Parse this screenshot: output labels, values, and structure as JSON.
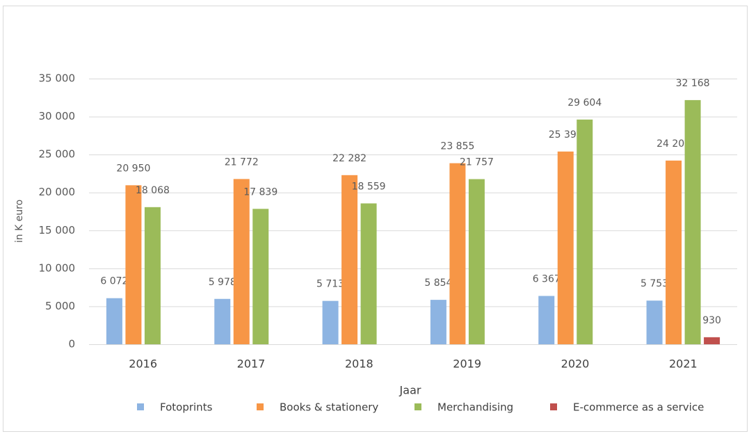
{
  "chart_data": {
    "type": "bar",
    "y_label": "in K euro",
    "x_label": "Jaar",
    "categories": [
      "2016",
      "2017",
      "2018",
      "2019",
      "2020",
      "2021"
    ],
    "series": [
      {
        "name": "Fotoprints",
        "color": "#8db4e2",
        "values": [
          6072,
          5978,
          5713,
          5854,
          6367,
          5753
        ],
        "value_labels": [
          "6 072",
          "5 978",
          "5 713",
          "5 854",
          "6 367",
          "5 753"
        ]
      },
      {
        "name": "Books & stationery",
        "color": "#f79646",
        "values": [
          20950,
          21772,
          22282,
          23855,
          25392,
          24201
        ],
        "value_labels": [
          "20 950",
          "21 772",
          "22 282",
          "23 855",
          "25 392",
          "24 201"
        ]
      },
      {
        "name": "Merchandising",
        "color": "#9bbb59",
        "values": [
          18068,
          17839,
          18559,
          21757,
          29604,
          32168
        ],
        "value_labels": [
          "18 068",
          "17 839",
          "18 559",
          "21 757",
          "29 604",
          "32 168"
        ]
      },
      {
        "name": "E-commerce as a service",
        "color": "#c0504d",
        "values": [
          null,
          null,
          null,
          null,
          null,
          930
        ],
        "value_labels": [
          null,
          null,
          null,
          null,
          null,
          "930"
        ]
      }
    ],
    "ylim": [
      0,
      35000
    ],
    "yticks": [
      0,
      {
        "value": 5000,
        "label": "5 000"
      },
      {
        "value": 10000,
        "label": "10 000"
      },
      {
        "value": 15000,
        "label": "15 000"
      },
      {
        "value": 20000,
        "label": "20 000"
      },
      {
        "value": 25000,
        "label": "25 000"
      },
      {
        "value": 30000,
        "label": "30 000"
      },
      {
        "value": 35000,
        "label": "35 000"
      }
    ],
    "grid": true,
    "legend": "bottom"
  }
}
